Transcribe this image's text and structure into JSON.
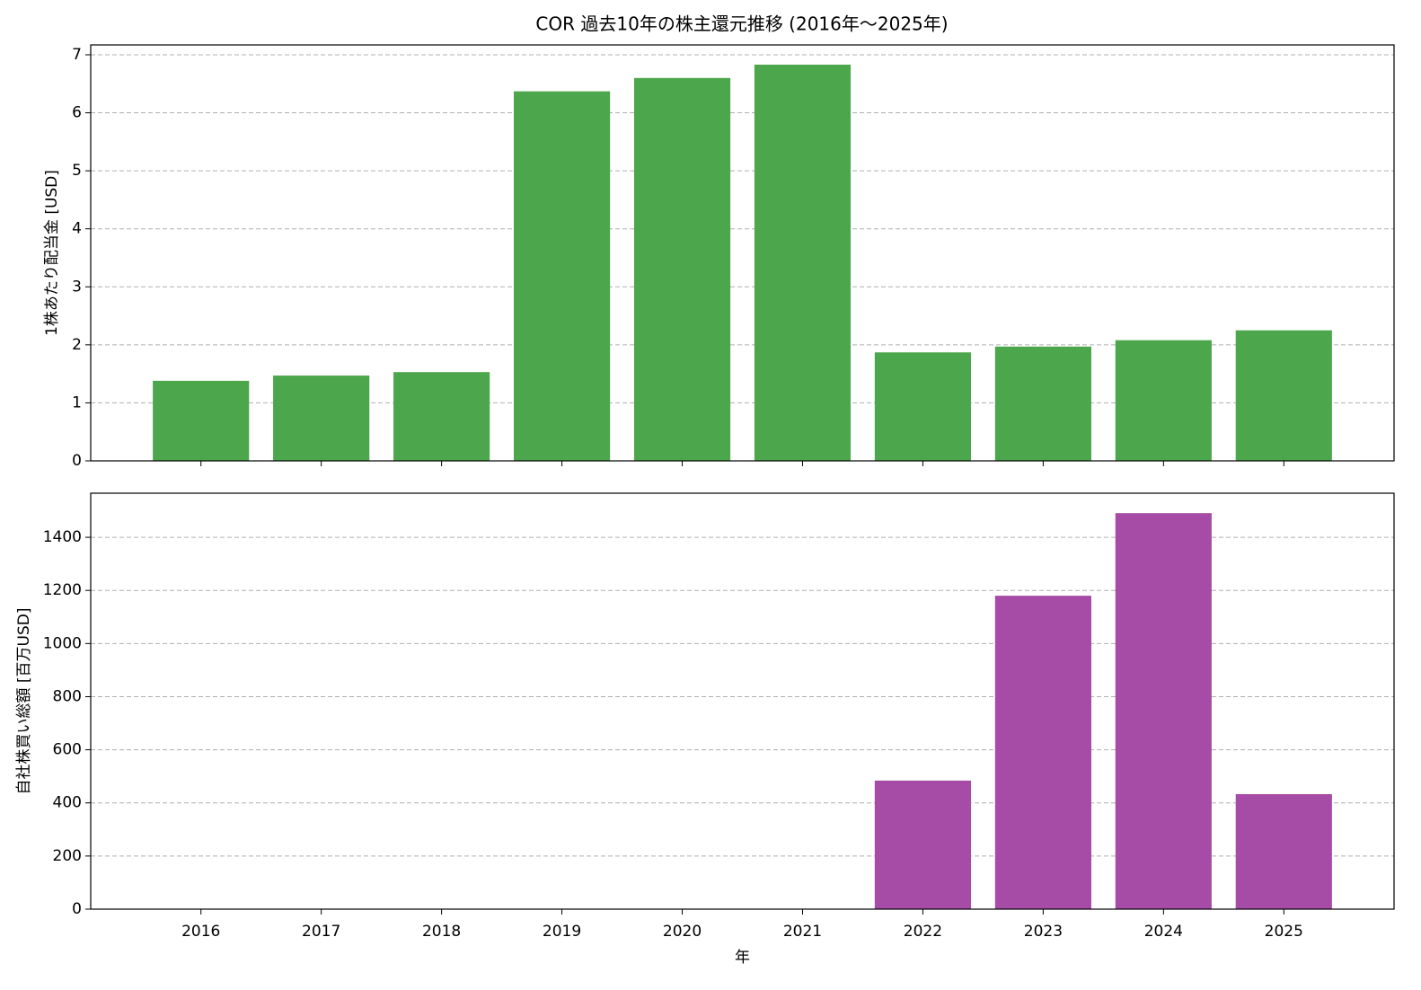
{
  "chart_data": [
    {
      "type": "bar",
      "title": "COR 過去10年の株主還元推移 (2016年～2025年)",
      "y_label": "1株あたり配当金 [USD]",
      "values": [
        1.38,
        1.47,
        1.53,
        6.37,
        6.6,
        6.83,
        1.87,
        1.97,
        2.08,
        2.25
      ],
      "color": "#4ca64c",
      "ylim": [
        0,
        7.17
      ],
      "yticks": [
        0,
        1,
        2,
        3,
        4,
        5,
        6,
        7
      ],
      "grid": true
    },
    {
      "type": "bar",
      "y_label": "自社株買い総額 [百万USD]",
      "x_label": "年",
      "categories": [
        "2016",
        "2017",
        "2018",
        "2019",
        "2020",
        "2021",
        "2022",
        "2023",
        "2024",
        "2025"
      ],
      "values": [
        0,
        0,
        0,
        0,
        0,
        0,
        484,
        1180,
        1491,
        433
      ],
      "color": "#a64ca6",
      "ylim": [
        0,
        1566
      ],
      "yticks": [
        0,
        200,
        400,
        600,
        800,
        1000,
        1200,
        1400
      ],
      "grid": true
    }
  ]
}
